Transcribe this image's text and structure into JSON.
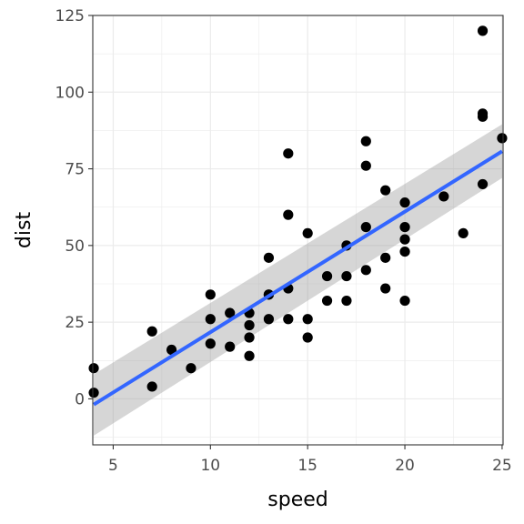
{
  "chart_data": {
    "type": "scatter",
    "title": "",
    "xlabel": "speed",
    "ylabel": "dist",
    "xlim": [
      3.95,
      25.05
    ],
    "ylim": [
      -15,
      125
    ],
    "x_ticks": [
      5,
      10,
      15,
      20,
      25
    ],
    "y_ticks": [
      0,
      25,
      50,
      75,
      100,
      125
    ],
    "x_tick_labels": [
      "5",
      "10",
      "15",
      "20",
      "25"
    ],
    "y_tick_labels": [
      "0",
      "25",
      "50",
      "75",
      "100",
      "125"
    ],
    "grid": true,
    "legend": "none",
    "x": [
      4,
      4,
      7,
      7,
      8,
      9,
      10,
      10,
      10,
      11,
      11,
      12,
      12,
      12,
      12,
      13,
      13,
      13,
      13,
      14,
      14,
      14,
      14,
      15,
      15,
      15,
      16,
      16,
      17,
      17,
      17,
      18,
      18,
      18,
      18,
      19,
      19,
      19,
      20,
      20,
      20,
      20,
      20,
      22,
      23,
      24,
      24,
      24,
      24,
      25
    ],
    "y": [
      2,
      10,
      4,
      22,
      16,
      10,
      18,
      26,
      34,
      17,
      28,
      14,
      20,
      24,
      28,
      26,
      34,
      34,
      46,
      26,
      36,
      60,
      80,
      20,
      26,
      54,
      32,
      40,
      32,
      40,
      50,
      42,
      56,
      76,
      84,
      36,
      46,
      68,
      32,
      48,
      52,
      56,
      64,
      66,
      54,
      70,
      92,
      93,
      120,
      85
    ],
    "trend": {
      "method": "linear",
      "x": [
        4,
        25
      ],
      "y": [
        -1.85,
        80.7
      ],
      "ci_lower": [
        -12.0,
        72.0
      ],
      "ci_upper": [
        8.0,
        89.5
      ]
    },
    "colors": {
      "points": "#000000",
      "trend_line": "#3366FF",
      "ci_band": "#999999",
      "grid": "#EBEBEB",
      "panel_border": "#333333",
      "background": "#FFFFFF"
    }
  }
}
